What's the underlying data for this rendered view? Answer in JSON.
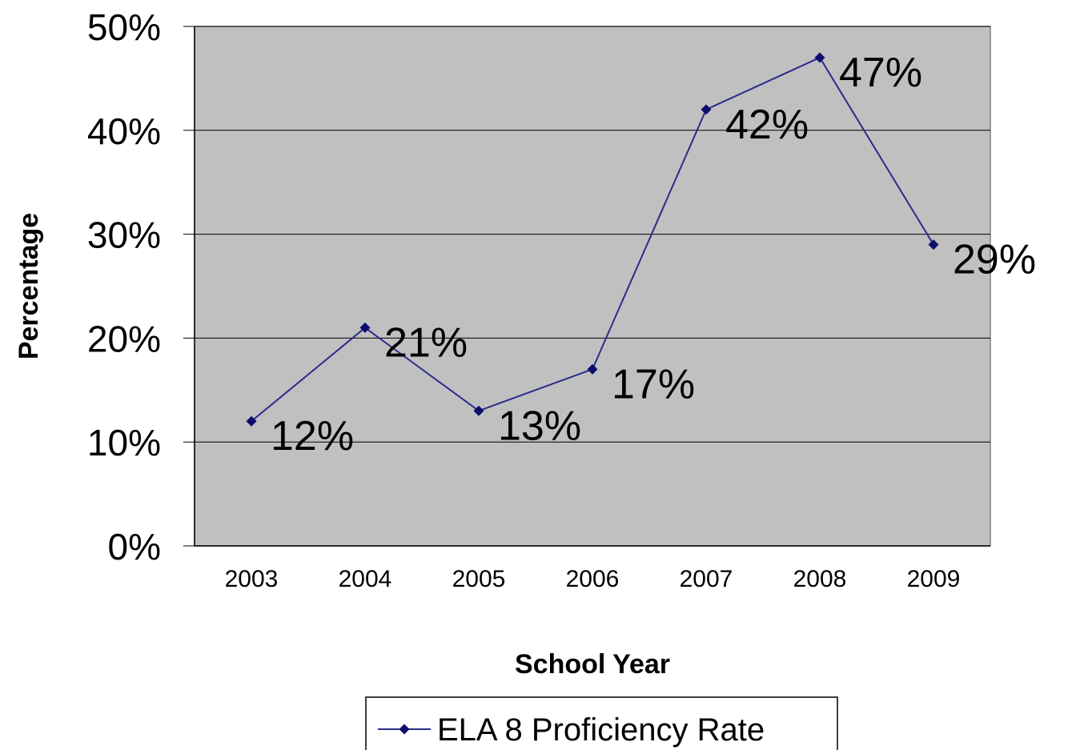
{
  "chart_data": {
    "type": "line",
    "categories": [
      "2003",
      "2004",
      "2005",
      "2006",
      "2007",
      "2008",
      "2009"
    ],
    "series": [
      {
        "name": "ELA 8 Proficiency Rate",
        "values": [
          12,
          21,
          13,
          17,
          42,
          47,
          29
        ],
        "data_labels": [
          "12%",
          "21%",
          "13%",
          "17%",
          "42%",
          "47%",
          "29%"
        ]
      }
    ],
    "xlabel": "School Year",
    "ylabel": "Percentage",
    "ylim": [
      0,
      50
    ],
    "yticks": [
      0,
      10,
      20,
      30,
      40,
      50
    ],
    "ytick_labels": [
      "0%",
      "10%",
      "20%",
      "30%",
      "40%",
      "50%"
    ],
    "grid": true,
    "legend_position": "bottom",
    "colors": {
      "series_line": "#2b2b8c",
      "marker": "#0d0d6b",
      "plot_background": "#c0c0c0",
      "gridline": "#000000"
    },
    "marker_shape": "diamond"
  }
}
